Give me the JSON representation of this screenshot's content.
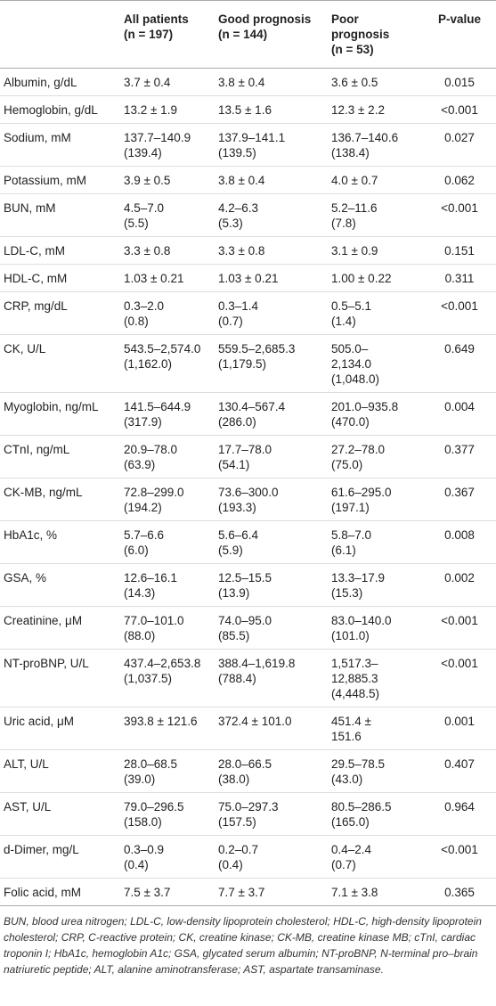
{
  "table": {
    "header": [
      "",
      "All patients\n(n = 197)",
      "Good prognosis\n(n = 144)",
      "Poor\nprognosis\n(n = 53)",
      "P-value"
    ],
    "rows": [
      [
        "Albumin, g/dL",
        "3.7 ± 0.4",
        "3.8 ± 0.4",
        "3.6 ± 0.5",
        "0.015"
      ],
      [
        "Hemoglobin, g/dL",
        "13.2 ± 1.9",
        "13.5 ± 1.6",
        "12.3 ± 2.2",
        "<0.001"
      ],
      [
        "Sodium, mM",
        "137.7–140.9\n(139.4)",
        "137.9–141.1\n(139.5)",
        "136.7–140.6\n(138.4)",
        "0.027"
      ],
      [
        "Potassium, mM",
        "3.9 ± 0.5",
        "3.8 ± 0.4",
        "4.0 ± 0.7",
        "0.062"
      ],
      [
        "BUN, mM",
        "4.5–7.0\n(5.5)",
        "4.2–6.3\n(5.3)",
        "5.2–11.6\n(7.8)",
        "<0.001"
      ],
      [
        "LDL-C, mM",
        "3.3 ± 0.8",
        "3.3 ± 0.8",
        "3.1 ± 0.9",
        "0.151"
      ],
      [
        "HDL-C, mM",
        "1.03 ± 0.21",
        "1.03 ± 0.21",
        "1.00 ± 0.22",
        "0.311"
      ],
      [
        "CRP, mg/dL",
        "0.3–2.0\n(0.8)",
        "0.3–1.4\n(0.7)",
        "0.5–5.1\n(1.4)",
        "<0.001"
      ],
      [
        "CK, U/L",
        "543.5–2,574.0\n(1,162.0)",
        "559.5–2,685.3\n(1,179.5)",
        "505.0–\n2,134.0\n(1,048.0)",
        "0.649"
      ],
      [
        "Myoglobin, ng/mL",
        "141.5–644.9\n(317.9)",
        "130.4–567.4\n(286.0)",
        "201.0–935.8\n(470.0)",
        "0.004"
      ],
      [
        "CTnI, ng/mL",
        "20.9–78.0\n(63.9)",
        "17.7–78.0\n(54.1)",
        "27.2–78.0\n(75.0)",
        "0.377"
      ],
      [
        "CK-MB, ng/mL",
        "72.8–299.0\n(194.2)",
        "73.6–300.0\n(193.3)",
        "61.6–295.0\n(197.1)",
        "0.367"
      ],
      [
        "HbA1c, %",
        "5.7–6.6\n(6.0)",
        "5.6–6.4\n(5.9)",
        "5.8–7.0\n(6.1)",
        "0.008"
      ],
      [
        "GSA, %",
        "12.6–16.1\n(14.3)",
        "12.5–15.5\n(13.9)",
        "13.3–17.9\n(15.3)",
        "0.002"
      ],
      [
        "Creatinine, μM",
        "77.0–101.0\n(88.0)",
        "74.0–95.0\n(85.5)",
        "83.0–140.0\n(101.0)",
        "<0.001"
      ],
      [
        "NT-proBNP, U/L",
        "437.4–2,653.8\n(1,037.5)",
        "388.4–1,619.8\n(788.4)",
        "1,517.3–\n12,885.3\n(4,448.5)",
        "<0.001"
      ],
      [
        "Uric acid, μM",
        "393.8 ± 121.6",
        "372.4 ± 101.0",
        "451.4 ±\n151.6",
        "0.001"
      ],
      [
        "ALT, U/L",
        "28.0–68.5\n(39.0)",
        "28.0–66.5\n(38.0)",
        "29.5–78.5\n(43.0)",
        "0.407"
      ],
      [
        "AST, U/L",
        "79.0–296.5\n(158.0)",
        "75.0–297.3\n(157.5)",
        "80.5–286.5\n(165.0)",
        "0.964"
      ],
      [
        "d-Dimer, mg/L",
        "0.3–0.9\n(0.4)",
        "0.2–0.7\n(0.4)",
        "0.4–2.4\n(0.7)",
        "<0.001"
      ],
      [
        "Folic acid, mM",
        "7.5 ± 3.7",
        "7.7 ± 3.7",
        "7.1 ± 3.8",
        "0.365"
      ]
    ]
  },
  "footnote": "BUN, blood urea nitrogen; LDL-C, low-density lipoprotein cholesterol; HDL-C, high-density lipoprotein cholesterol; CRP, C-reactive protein; CK, creatine kinase; CK-MB, creatine kinase MB; cTnI, cardiac troponin I; HbA1c, hemoglobin A1c; GSA, glycated serum albumin; NT-proBNP, N-terminal pro–brain natriuretic peptide; ALT, alanine aminotransferase; AST, aspartate transaminase."
}
